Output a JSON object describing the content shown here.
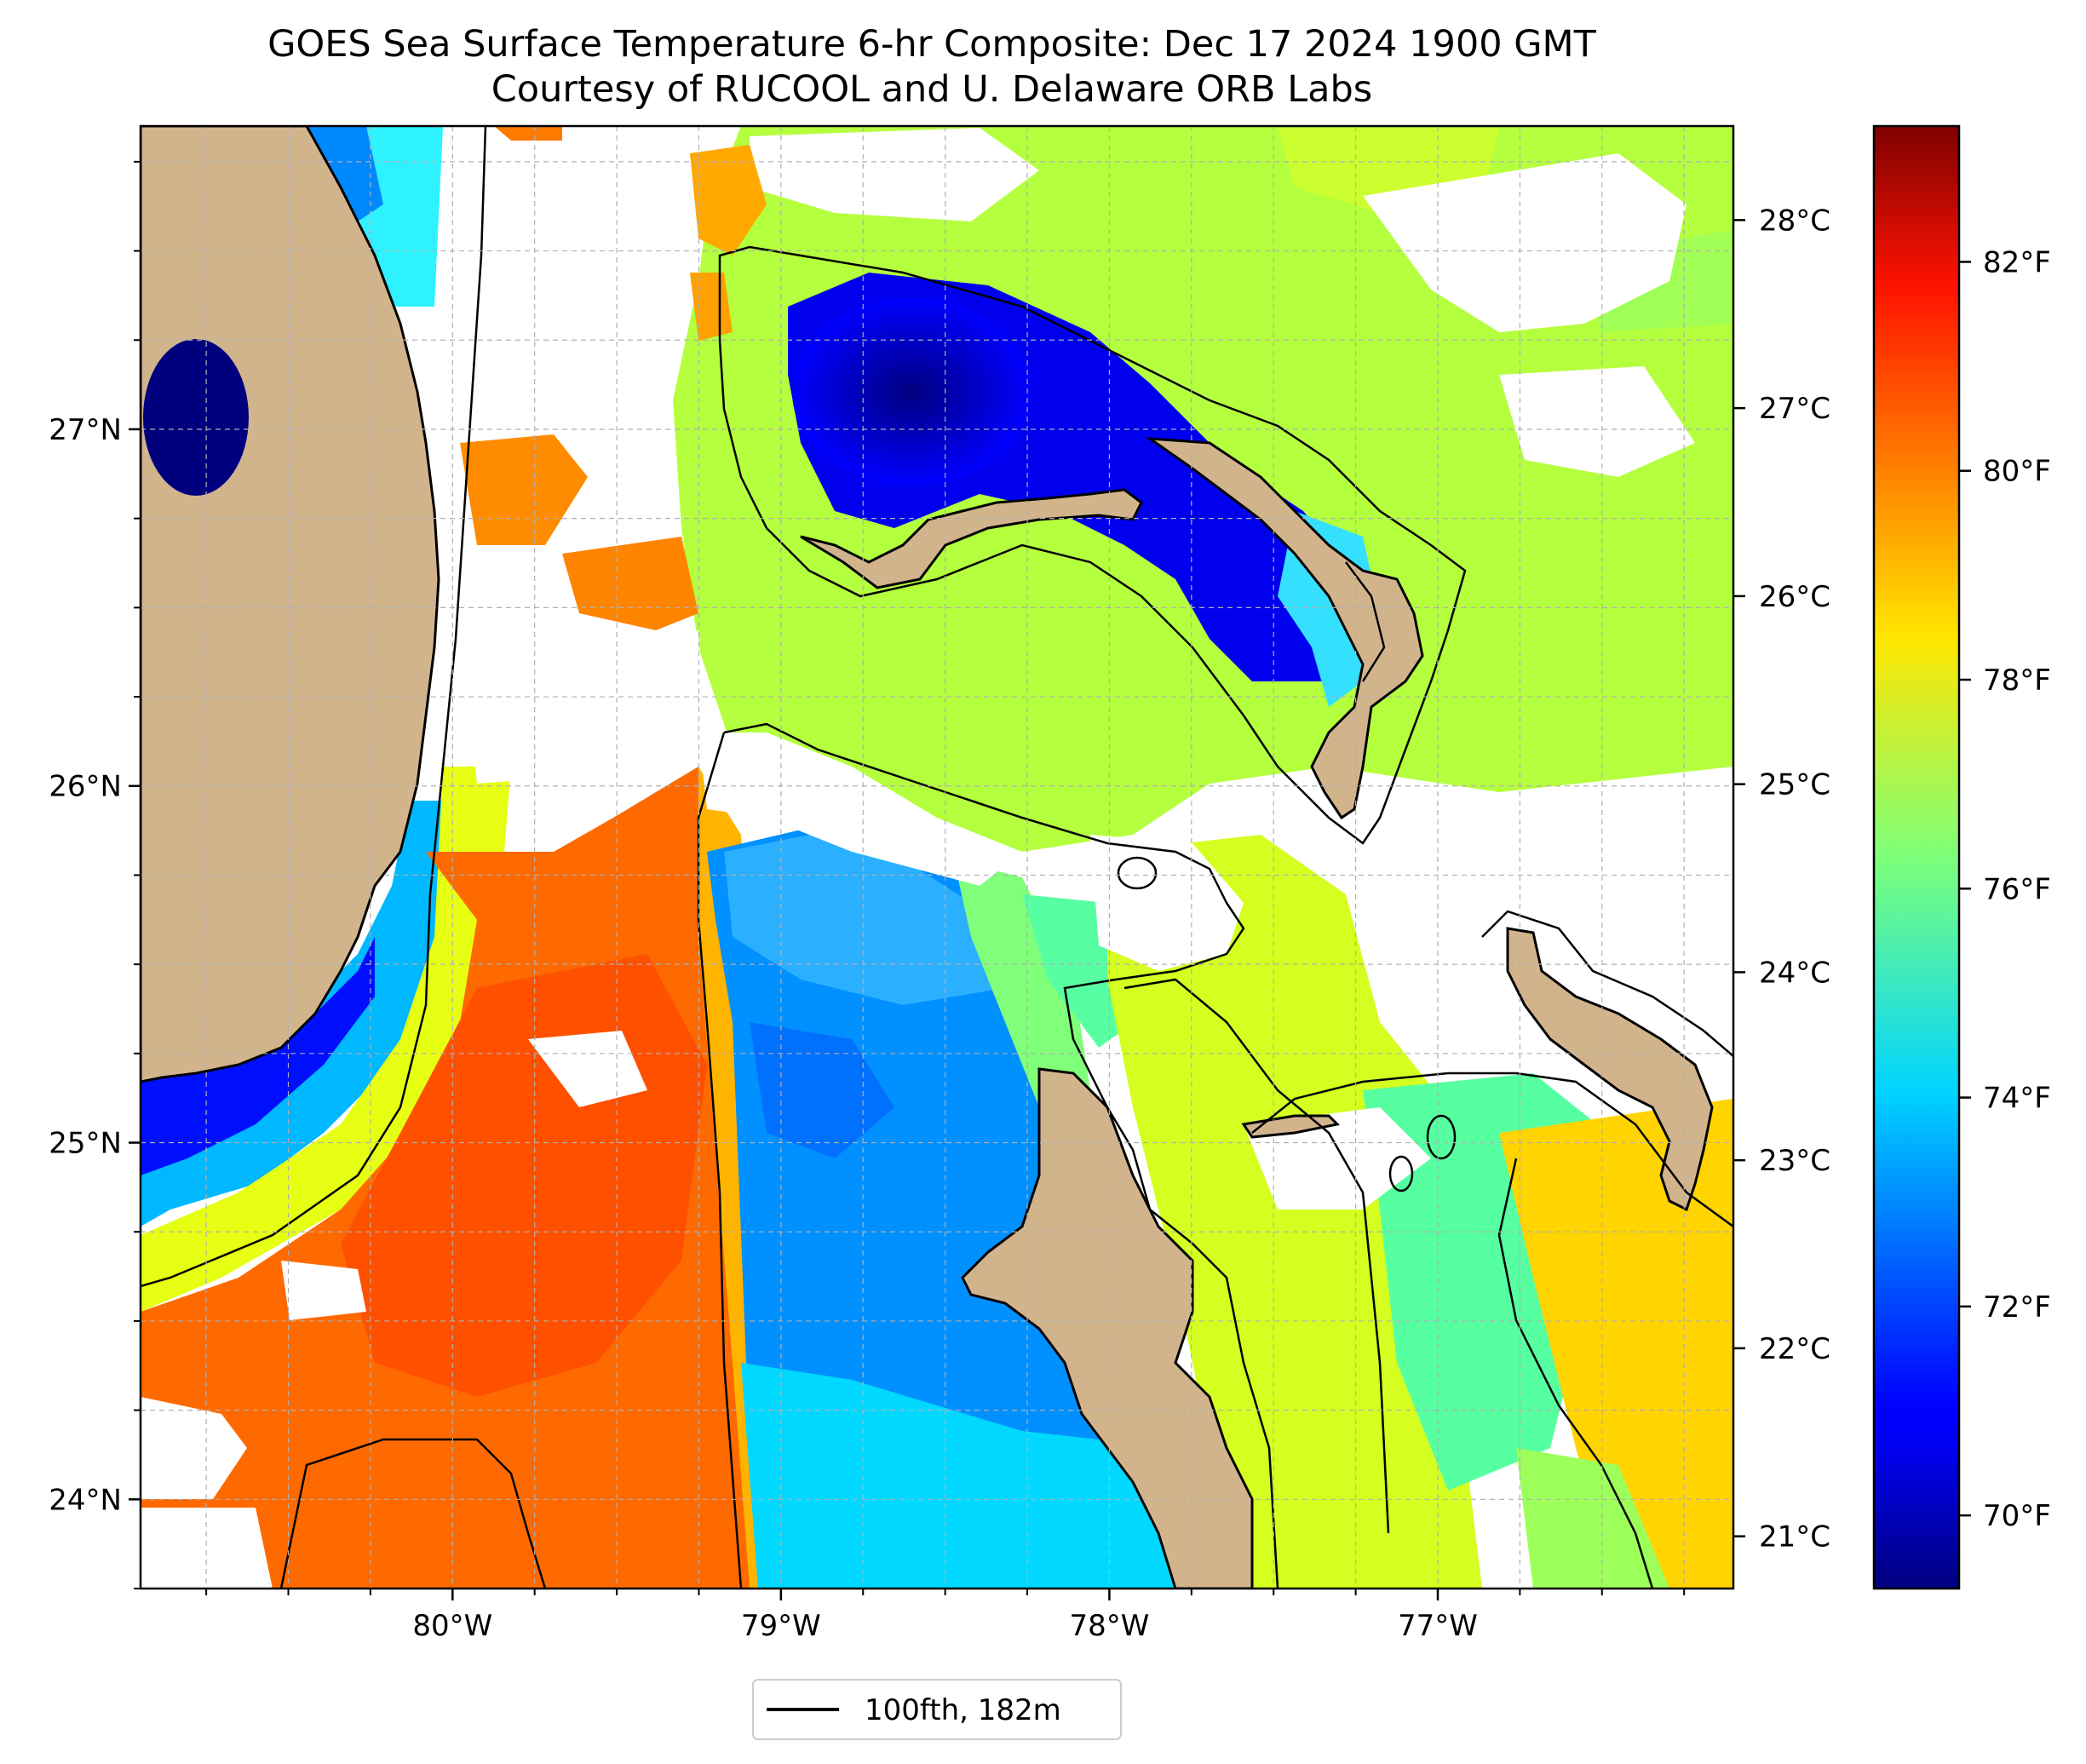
{
  "title": {
    "line1": "GOES Sea Surface Temperature 6-hr Composite: Dec 17 2024 1900 GMT",
    "line2": "Courtesy of RUCOOL and U. Delaware ORB Labs"
  },
  "map": {
    "lon_range": [
      -80.95,
      -76.1
    ],
    "lat_range": [
      23.75,
      27.85
    ],
    "lon_ticks": [
      {
        "value": -80,
        "label": "80°W"
      },
      {
        "value": -79,
        "label": "79°W"
      },
      {
        "value": -78,
        "label": "78°W"
      },
      {
        "value": -77,
        "label": "77°W"
      }
    ],
    "lat_ticks": [
      {
        "value": 24,
        "label": "24°N"
      },
      {
        "value": 25,
        "label": "25°N"
      },
      {
        "value": 26,
        "label": "26°N"
      },
      {
        "value": 27,
        "label": "27°N"
      }
    ],
    "grid": true,
    "colors": {
      "land": "#d2b48c",
      "no_data": "#ffffff",
      "grid": "#b0b0b0",
      "contour": "#000000"
    }
  },
  "celsius_axis": [
    {
      "value": 28,
      "label": "28°C"
    },
    {
      "value": 27,
      "label": "27°C"
    },
    {
      "value": 26,
      "label": "26°C"
    },
    {
      "value": 25,
      "label": "25°C"
    },
    {
      "value": 24,
      "label": "24°C"
    },
    {
      "value": 23,
      "label": "23°C"
    },
    {
      "value": 22,
      "label": "22°C"
    },
    {
      "value": 21,
      "label": "21°C"
    }
  ],
  "colorbar": {
    "range_f": [
      69.3,
      83.3
    ],
    "colormap": "jet",
    "ticks": [
      {
        "value": 82,
        "label": "82°F"
      },
      {
        "value": 80,
        "label": "80°F"
      },
      {
        "value": 78,
        "label": "78°F"
      },
      {
        "value": 76,
        "label": "76°F"
      },
      {
        "value": 74,
        "label": "74°F"
      },
      {
        "value": 72,
        "label": "72°F"
      },
      {
        "value": 70,
        "label": "70°F"
      }
    ]
  },
  "legend": {
    "label": "100fth, 182m",
    "line_color": "#000000"
  }
}
